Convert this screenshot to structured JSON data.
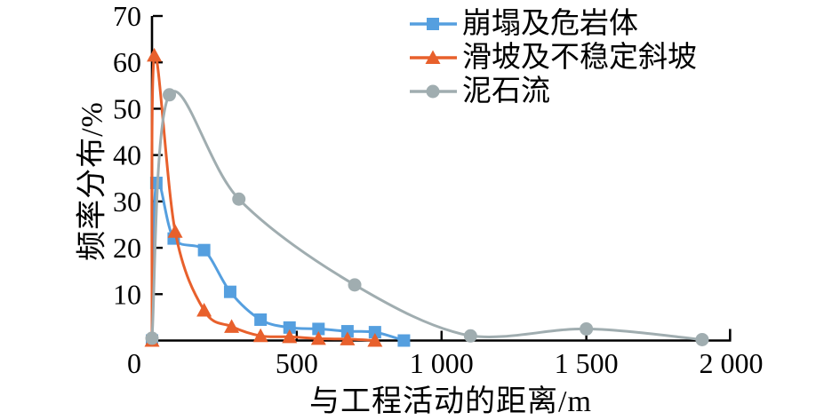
{
  "figure": {
    "background": "#ffffff",
    "axis_color": "#000000"
  },
  "chart_data": {
    "type": "line",
    "title": "",
    "xlabel": "与工程活动的距离/m",
    "ylabel": "频率分布/%",
    "xlim": [
      0,
      2000
    ],
    "ylim": [
      0,
      70
    ],
    "grid": false,
    "legend_position": "top-right-inside",
    "x_ticks": [
      {
        "value": 0,
        "label": "0"
      },
      {
        "value": 500,
        "label": "500"
      },
      {
        "value": 1000,
        "label": "1 000"
      },
      {
        "value": 1500,
        "label": "1 500"
      },
      {
        "value": 2000,
        "label": "2 000"
      }
    ],
    "y_ticks": [
      {
        "value": 10,
        "label": "10"
      },
      {
        "value": 20,
        "label": "20"
      },
      {
        "value": 30,
        "label": "30"
      },
      {
        "value": 40,
        "label": "40"
      },
      {
        "value": 50,
        "label": "50"
      },
      {
        "value": 60,
        "label": "60"
      },
      {
        "value": 70,
        "label": "70"
      }
    ],
    "series": [
      {
        "id": "collapse-rockmass",
        "name": "崩塌及危岩体",
        "color": "#559FDF",
        "marker": "square",
        "x": [
          0,
          15,
          75,
          180,
          270,
          375,
          475,
          575,
          675,
          770,
          870
        ],
        "y": [
          0,
          34,
          22,
          19.5,
          10.5,
          4.5,
          2.8,
          2.5,
          2,
          1.8,
          0
        ]
      },
      {
        "id": "landslide-unstable-slope",
        "name": "滑坡及不稳定斜坡",
        "color": "#E8602C",
        "marker": "triangle",
        "x": [
          0,
          8,
          80,
          180,
          275,
          375,
          475,
          575,
          675,
          770
        ],
        "y": [
          0,
          61.5,
          23.5,
          6.5,
          3,
          1,
          0.8,
          0.4,
          0.3,
          0
        ]
      },
      {
        "id": "debris-flow",
        "name": "泥石流",
        "color": "#A0ADB0",
        "marker": "circle",
        "x": [
          0,
          60,
          300,
          700,
          1100,
          1500,
          1900
        ],
        "y": [
          0.5,
          53,
          30.5,
          12,
          1,
          2.5,
          0.2
        ]
      }
    ]
  }
}
